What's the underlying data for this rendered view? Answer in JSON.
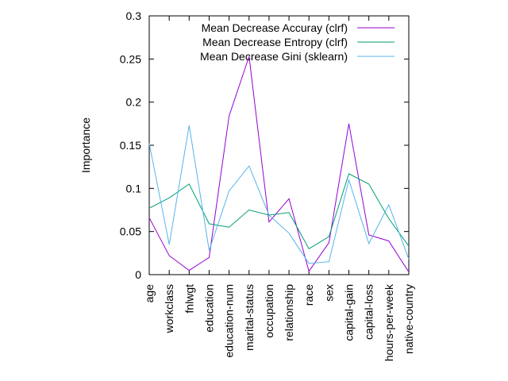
{
  "chart_data": {
    "type": "line",
    "title": "",
    "xlabel": "",
    "ylabel": "Importance",
    "ylim": [
      0,
      0.3
    ],
    "yticks": [
      "0",
      "0.05",
      "0.1",
      "0.15",
      "0.2",
      "0.25",
      "0.3"
    ],
    "grid": false,
    "legend_position": "top-right",
    "categories": [
      "age",
      "workclass",
      "fnlwgt",
      "education",
      "education-num",
      "marital-status",
      "occupation",
      "relationship",
      "race",
      "sex",
      "capital-gain",
      "capital-loss",
      "hours-per-week",
      "native-country"
    ],
    "series": [
      {
        "name": "Mean Decrease Accuray (clrf)",
        "color": "#9400d3",
        "values": [
          0.066,
          0.022,
          0.005,
          0.02,
          0.184,
          0.253,
          0.061,
          0.088,
          0.004,
          0.037,
          0.175,
          0.046,
          0.039,
          0.003
        ]
      },
      {
        "name": "Mean Decrease Entropy (clrf)",
        "color": "#009e73",
        "values": [
          0.077,
          0.089,
          0.105,
          0.059,
          0.055,
          0.075,
          0.069,
          0.072,
          0.03,
          0.044,
          0.117,
          0.105,
          0.065,
          0.033
        ]
      },
      {
        "name": "Mean Decrease Gini (sklearn)",
        "color": "#56b4e9",
        "values": [
          0.152,
          0.035,
          0.173,
          0.028,
          0.097,
          0.126,
          0.069,
          0.048,
          0.013,
          0.015,
          0.11,
          0.036,
          0.081,
          0.018
        ]
      }
    ]
  }
}
